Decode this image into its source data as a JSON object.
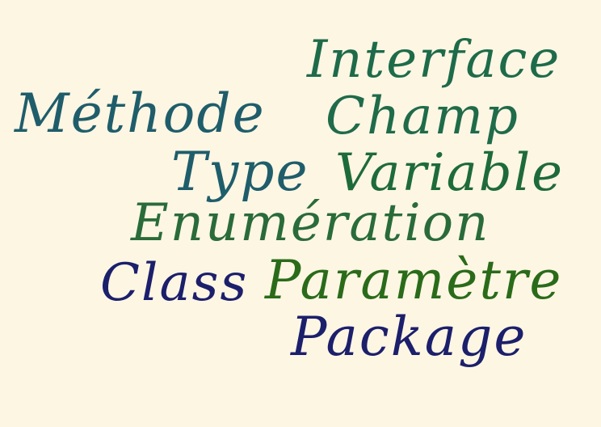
{
  "colors": {
    "background": "#fdf6e3",
    "green": "#1e6b2a",
    "teal": "#1f5d6b",
    "dark_teal": "#1a5a5a",
    "navy": "#1c1f6b",
    "olive_green": "#2a6b1a"
  },
  "words": {
    "interface": {
      "text": "Interface",
      "color": "#1e6b4a"
    },
    "methode": {
      "text": "Méthode",
      "color": "#1f5d6b"
    },
    "champ": {
      "text": "Champ",
      "color": "#1f6b4a"
    },
    "type": {
      "text": "Type",
      "color": "#1f5d6b"
    },
    "variable": {
      "text": "Variable",
      "color": "#1e6b3a"
    },
    "enumeration": {
      "text": "Enumération",
      "color": "#2a6b3a"
    },
    "class": {
      "text": "Class",
      "color": "#1c1f6b"
    },
    "parametre": {
      "text": "Paramètre",
      "color": "#2a6b1a"
    },
    "package": {
      "text": "Package",
      "color": "#1c1f6b"
    }
  }
}
